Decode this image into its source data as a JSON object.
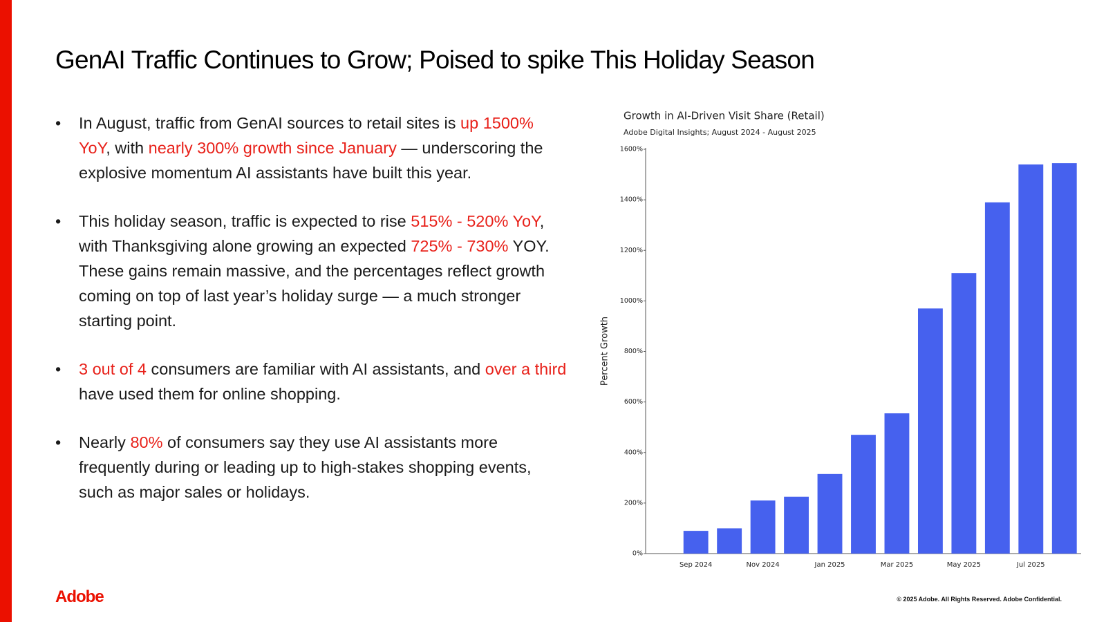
{
  "title": "GenAI Traffic Continues to Grow; Poised to spike This Holiday Season",
  "bullets": [
    {
      "segments": [
        {
          "text": "In August, traffic from GenAI sources to retail sites is ",
          "color": "#1a1a1a"
        },
        {
          "text": "up 1500% YoY",
          "color": "#e8211a"
        },
        {
          "text": ", with ",
          "color": "#1a1a1a"
        },
        {
          "text": "nearly 300% growth since January",
          "color": "#e8211a"
        },
        {
          "text": " — underscoring the explosive momentum AI assistants have built this year.",
          "color": "#1a1a1a"
        }
      ]
    },
    {
      "segments": [
        {
          "text": "This holiday season, traffic is expected to rise ",
          "color": "#1a1a1a"
        },
        {
          "text": "515% - 520% YoY",
          "color": "#e8211a"
        },
        {
          "text": ", with Thanksgiving alone growing an expected ",
          "color": "#1a1a1a"
        },
        {
          "text": "725% - 730%",
          "color": "#e8211a"
        },
        {
          "text": " YOY. These gains remain massive, and the percentages reflect growth coming on top of last year’s holiday surge — a much stronger starting point.",
          "color": "#1a1a1a"
        }
      ]
    },
    {
      "segments": [
        {
          "text": "3 out of 4",
          "color": "#e8211a"
        },
        {
          "text": " consumers are familiar with AI assistants, and ",
          "color": "#1a1a1a"
        },
        {
          "text": "over a third",
          "color": "#e8211a"
        },
        {
          "text": " have used them for online shopping.",
          "color": "#1a1a1a"
        }
      ]
    },
    {
      "segments": [
        {
          "text": "Nearly ",
          "color": "#1a1a1a"
        },
        {
          "text": "80%",
          "color": "#e8211a"
        },
        {
          "text": " of consumers say they use AI assistants more frequently during or leading up to high-stakes shopping events, such as major sales or holidays.",
          "color": "#1a1a1a"
        }
      ]
    }
  ],
  "chart_data": {
    "type": "bar",
    "title": "Growth in AI-Driven Visit Share (Retail)",
    "subtitle": "Adobe Digital Insights; August 2024 - August 2025",
    "y_label": "Percent Growth",
    "categories": [
      null,
      "Sep 2024",
      null,
      "Nov 2024",
      null,
      "Jan 2025",
      null,
      "Mar 2025",
      null,
      "May 2025",
      null,
      "Jul 2025",
      null
    ],
    "values": [
      0,
      90,
      100,
      210,
      225,
      315,
      470,
      555,
      970,
      1110,
      1390,
      1540,
      1545
    ],
    "color": "#4661ee",
    "ylim": [
      0,
      1600
    ],
    "yticks": [
      {
        "value": 0,
        "label": "0%"
      },
      {
        "value": 200,
        "label": "200%"
      },
      {
        "value": 400,
        "label": "400%"
      },
      {
        "value": 600,
        "label": "600%"
      },
      {
        "value": 800,
        "label": "800%"
      },
      {
        "value": 1000,
        "label": "1000%"
      },
      {
        "value": 1200,
        "label": "1200%"
      },
      {
        "value": 1400,
        "label": "1400%"
      },
      {
        "value": 1600,
        "label": "1600%"
      }
    ],
    "grid": false
  },
  "footer": {
    "logo": "Adobe",
    "copyright": "© 2025 Adobe. All Rights Reserved. Adobe Confidential."
  }
}
